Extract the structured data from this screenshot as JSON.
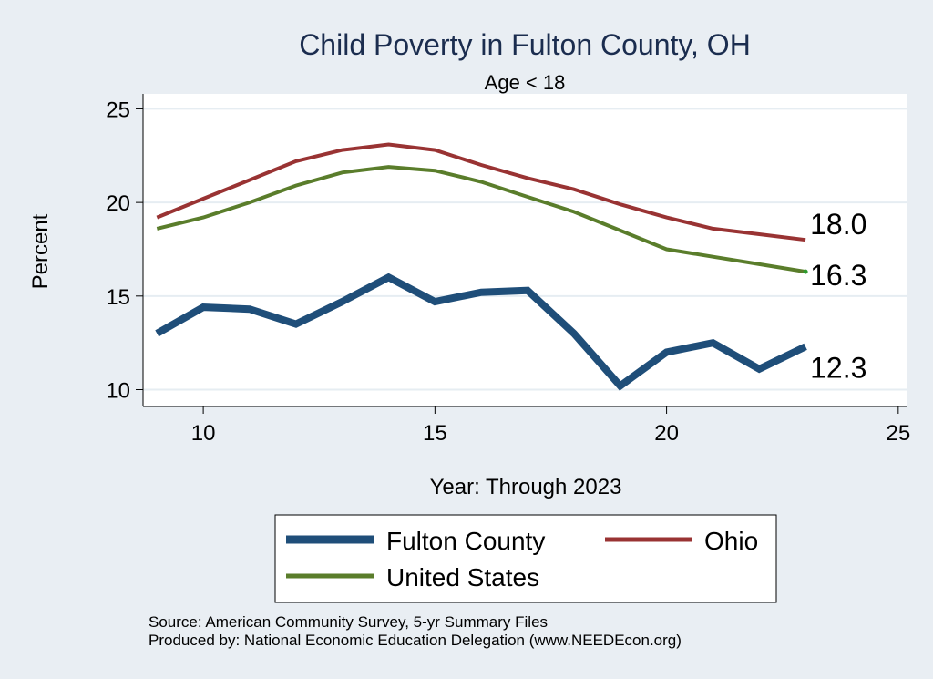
{
  "chart_data": {
    "type": "line",
    "title": "Child Poverty in Fulton County, OH",
    "subtitle": "Age < 18",
    "xlabel": "Year: Through 2023",
    "ylabel": "Percent",
    "xlim": [
      8.7,
      25.2
    ],
    "ylim": [
      9.1,
      25.8
    ],
    "xticks": [
      10,
      15,
      20,
      25
    ],
    "yticks": [
      10,
      15,
      20,
      25
    ],
    "x": [
      9,
      10,
      11,
      12,
      13,
      14,
      15,
      16,
      17,
      18,
      19,
      20,
      21,
      22,
      23
    ],
    "series": [
      {
        "name": "Fulton County",
        "color": "#1f4e79",
        "values": [
          13.0,
          14.4,
          14.3,
          13.5,
          14.7,
          16.0,
          14.7,
          15.2,
          15.3,
          13.0,
          10.2,
          12.0,
          12.5,
          11.1,
          12.3
        ],
        "end_label": "12.3"
      },
      {
        "name": "Ohio",
        "color": "#993333",
        "values": [
          19.2,
          20.2,
          21.2,
          22.2,
          22.8,
          23.1,
          22.8,
          22.0,
          21.3,
          20.7,
          19.9,
          19.2,
          18.6,
          18.3,
          18.0
        ],
        "end_label": "18.0"
      },
      {
        "name": "United States",
        "color": "#5a7d2b",
        "values": [
          18.6,
          19.2,
          20.0,
          20.9,
          21.6,
          21.9,
          21.7,
          21.1,
          20.3,
          19.5,
          18.5,
          17.5,
          17.1,
          16.7,
          16.3
        ],
        "end_label": "16.3"
      }
    ],
    "legend": {
      "position": "bottom",
      "entries": [
        "Fulton County",
        "Ohio",
        "United States"
      ]
    },
    "grid": true
  },
  "notes": {
    "source": "Source: American Community Survey, 5-yr Summary Files",
    "produced_by": "Produced by: National Economic Education Delegation (www.NEEDEcon.org)"
  }
}
